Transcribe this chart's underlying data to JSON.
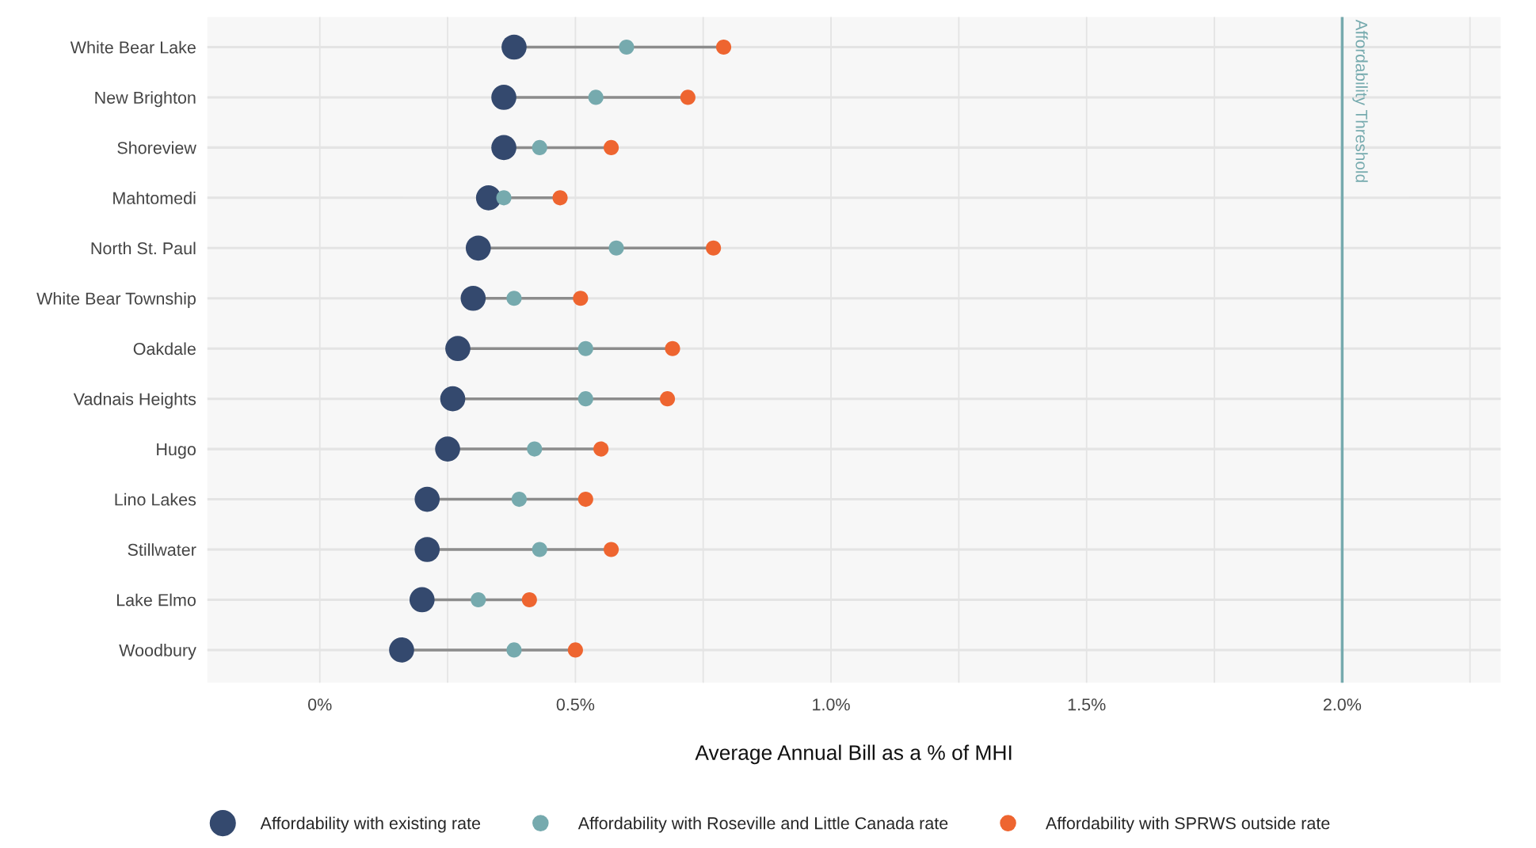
{
  "chart_data": {
    "type": "scatter",
    "xlabel": "Average Annual Bill as a % of MHI",
    "categories": [
      "White Bear Lake",
      "New Brighton",
      "Shoreview",
      "Mahtomedi",
      "North St. Paul",
      "White Bear Township",
      "Oakdale",
      "Vadnais Heights",
      "Hugo",
      "Lino Lakes",
      "Stillwater",
      "Lake Elmo",
      "Woodbury"
    ],
    "orientation": "horizontal",
    "series": [
      {
        "name": "Affordability with existing rate",
        "color": "#34496e",
        "values": [
          0.38,
          0.36,
          0.36,
          0.33,
          0.31,
          0.3,
          0.27,
          0.26,
          0.25,
          0.21,
          0.21,
          0.2,
          0.16
        ]
      },
      {
        "name": "Affordability with Roseville and Little Canada rate",
        "color": "#76aaae",
        "values": [
          0.6,
          0.54,
          0.43,
          0.36,
          0.58,
          0.38,
          0.52,
          0.52,
          0.42,
          0.39,
          0.43,
          0.31,
          0.38
        ]
      },
      {
        "name": "Affordability with SPRWS outside rate",
        "color": "#ee6530",
        "values": [
          0.79,
          0.72,
          0.57,
          0.47,
          0.77,
          0.51,
          0.69,
          0.68,
          0.55,
          0.52,
          0.57,
          0.41,
          0.5
        ]
      }
    ],
    "xlim": [
      -0.22,
      2.31
    ],
    "xticks": [
      {
        "value": 0,
        "label": "0%"
      },
      {
        "value": 0.5,
        "label": "0.5%"
      },
      {
        "value": 1.0,
        "label": "1.0%"
      },
      {
        "value": 1.5,
        "label": "1.5%"
      },
      {
        "value": 2.0,
        "label": "2.0%"
      }
    ],
    "ref_lines": [
      {
        "axis": "x",
        "value": 2.0,
        "label": "Affordability Threshold",
        "color": "#76aaae"
      }
    ],
    "grid": true,
    "legend": "bottom",
    "marker": "circle"
  }
}
